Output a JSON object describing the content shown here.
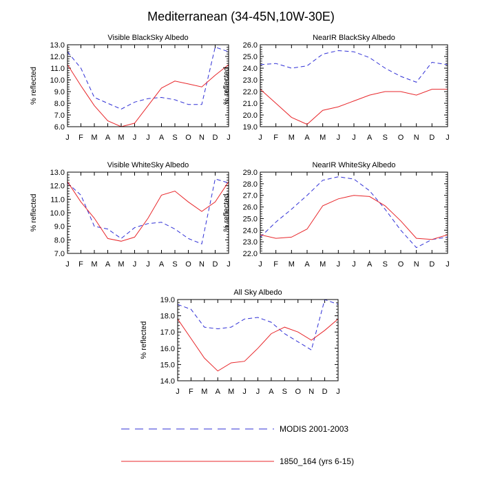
{
  "title": "Mediterranean (34-45N,10W-30E)",
  "months": [
    "J",
    "F",
    "M",
    "A",
    "M",
    "J",
    "J",
    "A",
    "S",
    "O",
    "N",
    "D",
    "J"
  ],
  "ylabel": "% reflected",
  "legend": [
    {
      "label": "MODIS 2001-2003",
      "color": "#2f2fd6",
      "dash": true
    },
    {
      "label": "1850_164 (yrs 6-15)",
      "color": "#e8262a",
      "dash": false
    }
  ],
  "chart_data": [
    {
      "type": "line",
      "title": "Visible BlackSky Albedo",
      "ylabel": "% reflected",
      "ylim": [
        6.0,
        13.0
      ],
      "yticks": [
        "6.0",
        "7.0",
        "8.0",
        "9.0",
        "10.0",
        "11.0",
        "12.0",
        "13.0"
      ],
      "categories": [
        "J",
        "F",
        "M",
        "A",
        "M",
        "J",
        "J",
        "A",
        "S",
        "O",
        "N",
        "D",
        "J"
      ],
      "series": [
        {
          "name": "MODIS 2001-2003",
          "values": [
            12.4,
            11.0,
            8.5,
            8.0,
            7.5,
            8.1,
            8.4,
            8.5,
            8.3,
            7.9,
            7.9,
            12.8,
            12.4
          ]
        },
        {
          "name": "1850_164 (yrs 6-15)",
          "values": [
            11.3,
            9.5,
            7.8,
            6.5,
            6.0,
            6.3,
            7.8,
            9.3,
            9.9,
            9.65,
            9.4,
            10.4,
            11.3
          ]
        }
      ]
    },
    {
      "type": "line",
      "title": "NearIR BlackSky Albedo",
      "ylabel": "% reflected",
      "ylim": [
        19.0,
        26.0
      ],
      "yticks": [
        "19.0",
        "20.0",
        "21.0",
        "22.0",
        "23.0",
        "24.0",
        "25.0",
        "26.0"
      ],
      "categories": [
        "J",
        "F",
        "M",
        "A",
        "M",
        "J",
        "J",
        "A",
        "S",
        "O",
        "N",
        "D",
        "J"
      ],
      "series": [
        {
          "name": "MODIS 2001-2003",
          "values": [
            24.3,
            24.4,
            24.0,
            24.2,
            25.2,
            25.5,
            25.4,
            24.9,
            24.0,
            23.3,
            22.8,
            24.5,
            24.3
          ]
        },
        {
          "name": "1850_164 (yrs 6-15)",
          "values": [
            22.2,
            21.0,
            19.8,
            19.2,
            20.4,
            20.7,
            21.2,
            21.7,
            22.0,
            22.0,
            21.7,
            22.2,
            22.2
          ]
        }
      ]
    },
    {
      "type": "line",
      "title": "Visible WhiteSky Albedo",
      "ylabel": "% reflected",
      "ylim": [
        7.0,
        13.0
      ],
      "yticks": [
        "7.0",
        "8.0",
        "9.0",
        "10.0",
        "11.0",
        "12.0",
        "13.0"
      ],
      "categories": [
        "J",
        "F",
        "M",
        "A",
        "M",
        "J",
        "J",
        "A",
        "S",
        "O",
        "N",
        "D",
        "J"
      ],
      "series": [
        {
          "name": "MODIS 2001-2003",
          "values": [
            12.2,
            11.3,
            9.0,
            8.8,
            8.1,
            8.9,
            9.2,
            9.3,
            8.8,
            8.1,
            7.7,
            12.5,
            12.2
          ]
        },
        {
          "name": "1850_164 (yrs 6-15)",
          "values": [
            12.3,
            10.8,
            9.6,
            8.1,
            7.9,
            8.2,
            9.6,
            11.3,
            11.6,
            10.8,
            10.1,
            10.8,
            12.3
          ]
        }
      ]
    },
    {
      "type": "line",
      "title": "NearIR WhiteSky Albedo",
      "ylabel": "% reflected",
      "ylim": [
        22.0,
        29.0
      ],
      "yticks": [
        "22.0",
        "23.0",
        "24.0",
        "25.0",
        "26.0",
        "27.0",
        "28.0",
        "29.0"
      ],
      "categories": [
        "J",
        "F",
        "M",
        "A",
        "M",
        "J",
        "J",
        "A",
        "S",
        "O",
        "N",
        "D",
        "J"
      ],
      "series": [
        {
          "name": "MODIS 2001-2003",
          "values": [
            23.4,
            24.7,
            25.8,
            27.0,
            28.3,
            28.6,
            28.4,
            27.4,
            25.8,
            24.0,
            22.5,
            23.2,
            23.4
          ]
        },
        {
          "name": "1850_164 (yrs 6-15)",
          "values": [
            23.6,
            23.3,
            23.4,
            24.1,
            26.1,
            26.7,
            27.0,
            26.9,
            26.1,
            24.8,
            23.3,
            23.2,
            23.6
          ]
        }
      ]
    },
    {
      "type": "line",
      "title": "All Sky Albedo",
      "ylabel": "% reflected",
      "ylim": [
        14.0,
        19.0
      ],
      "yticks": [
        "14.0",
        "15.0",
        "16.0",
        "17.0",
        "18.0",
        "19.0"
      ],
      "categories": [
        "J",
        "F",
        "M",
        "A",
        "M",
        "J",
        "J",
        "A",
        "S",
        "O",
        "N",
        "D",
        "J"
      ],
      "series": [
        {
          "name": "MODIS 2001-2003",
          "values": [
            18.7,
            18.4,
            17.3,
            17.2,
            17.3,
            17.8,
            17.9,
            17.6,
            16.9,
            16.4,
            15.9,
            19.0,
            18.7
          ]
        },
        {
          "name": "1850_164 (yrs 6-15)",
          "values": [
            17.8,
            16.6,
            15.4,
            14.6,
            15.1,
            15.2,
            16.0,
            16.9,
            17.3,
            17.0,
            16.5,
            17.1,
            17.8
          ]
        }
      ]
    }
  ]
}
